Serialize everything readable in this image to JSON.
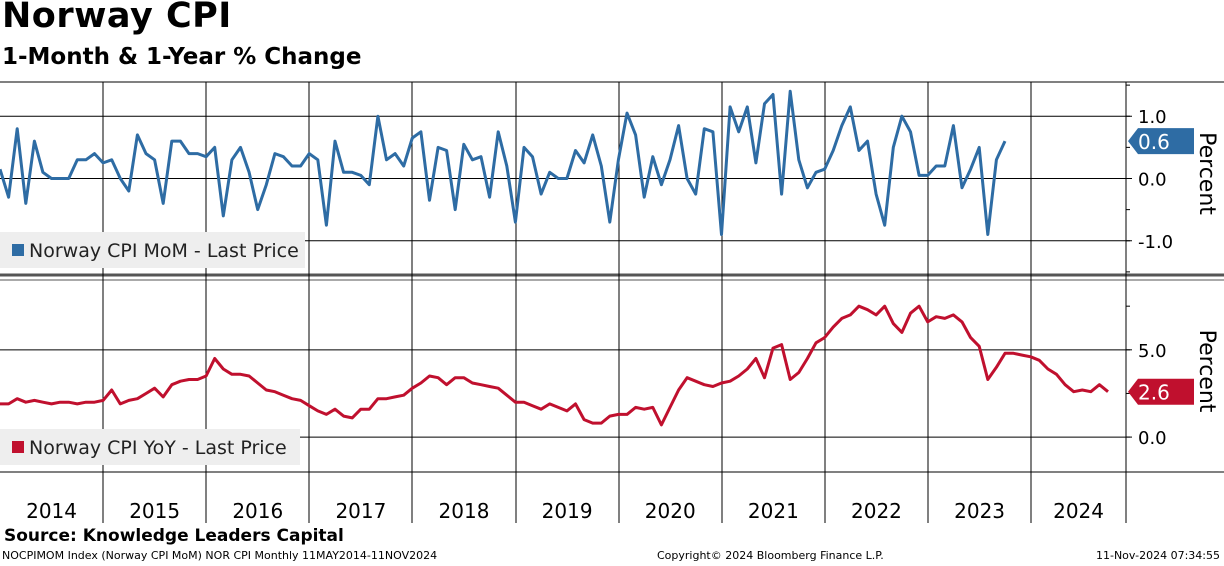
{
  "title": "Norway CPI",
  "subtitle": "1-Month & 1-Year % Change",
  "source": "Source: Knowledge Leaders Capital",
  "footer": {
    "left": "NOCPIMOM Index (Norway CPI MoM) NOR CPI  Monthly 11MAY2014-11NOV2024",
    "center": "Copyright© 2024 Bloomberg Finance L.P.",
    "right": "11-Nov-2024 07:34:55"
  },
  "colors": {
    "mom": "#2e6ca4",
    "yoy": "#c0102e"
  },
  "chart_data": [
    {
      "type": "line",
      "name": "mom",
      "x_range": [
        2014.0,
        2024.92
      ],
      "x_ticks": [
        "2014",
        "2015",
        "2016",
        "2017",
        "2018",
        "2019",
        "2020",
        "2021",
        "2022",
        "2023",
        "2024"
      ],
      "ylim": [
        -1.55,
        1.55
      ],
      "y_ticks": [
        -1.0,
        0.0,
        1.0
      ],
      "y_tick_labels": [
        "-1.0",
        "0.0",
        "1.0"
      ],
      "ylabel": "Percent",
      "legend": "Norway CPI MoM - Last Price",
      "last_value": "0.6",
      "grid": true,
      "series": [
        {
          "name": "Norway CPI MoM",
          "start": 2014.0,
          "step": 0.0833,
          "values": [
            0.15,
            -0.3,
            0.8,
            -0.4,
            0.6,
            0.1,
            0.0,
            0.0,
            0.0,
            0.3,
            0.3,
            0.4,
            0.25,
            0.3,
            0.0,
            -0.2,
            0.7,
            0.4,
            0.3,
            -0.4,
            0.6,
            0.6,
            0.4,
            0.4,
            0.35,
            0.5,
            -0.6,
            0.3,
            0.5,
            0.1,
            -0.5,
            -0.1,
            0.4,
            0.35,
            0.2,
            0.2,
            0.4,
            0.3,
            -0.75,
            0.6,
            0.1,
            0.1,
            0.05,
            -0.1,
            1.0,
            0.3,
            0.4,
            0.2,
            0.65,
            0.75,
            -0.35,
            0.5,
            0.45,
            -0.5,
            0.55,
            0.3,
            0.35,
            -0.3,
            0.75,
            0.2,
            -0.7,
            0.5,
            0.35,
            -0.25,
            0.1,
            0.0,
            0.0,
            0.45,
            0.25,
            0.7,
            0.2,
            -0.7,
            0.3,
            1.05,
            0.7,
            -0.3,
            0.35,
            -0.1,
            0.3,
            0.85,
            0.0,
            -0.25,
            0.8,
            0.75,
            -0.9,
            1.15,
            0.75,
            1.15,
            0.25,
            1.2,
            1.35,
            -0.25,
            1.4,
            0.3,
            -0.15,
            0.1,
            0.15,
            0.45,
            0.85,
            1.15,
            0.45,
            0.6,
            -0.25,
            -0.75,
            0.5,
            1.0,
            0.75,
            0.05,
            0.05,
            0.2,
            0.2,
            0.85,
            -0.15,
            0.15,
            0.5,
            -0.9,
            0.3,
            0.6
          ]
        }
      ]
    },
    {
      "type": "line",
      "name": "yoy",
      "x_range": [
        2014.0,
        2024.92
      ],
      "x_ticks": [
        "2014",
        "2015",
        "2016",
        "2017",
        "2018",
        "2019",
        "2020",
        "2021",
        "2022",
        "2023",
        "2024"
      ],
      "ylim": [
        -2.0,
        9.0
      ],
      "y_ticks": [
        0.0,
        5.0
      ],
      "y_tick_labels": [
        "0.0",
        "5.0"
      ],
      "ylabel": "Percent",
      "legend": "Norway CPI YoY - Last Price",
      "last_value": "2.6",
      "grid": true,
      "series": [
        {
          "name": "Norway CPI YoY",
          "start": 2014.0,
          "step": 0.0833,
          "values": [
            1.9,
            1.9,
            2.2,
            2.0,
            2.1,
            2.0,
            1.9,
            2.0,
            2.0,
            1.9,
            2.0,
            2.0,
            2.1,
            2.7,
            1.9,
            2.1,
            2.2,
            2.5,
            2.8,
            2.3,
            3.0,
            3.2,
            3.3,
            3.3,
            3.5,
            4.5,
            3.9,
            3.6,
            3.6,
            3.5,
            3.1,
            2.7,
            2.6,
            2.4,
            2.2,
            2.1,
            1.8,
            1.5,
            1.3,
            1.6,
            1.2,
            1.1,
            1.6,
            1.6,
            2.2,
            2.2,
            2.3,
            2.4,
            2.8,
            3.1,
            3.5,
            3.4,
            3.0,
            3.4,
            3.4,
            3.1,
            3.0,
            2.9,
            2.8,
            2.4,
            2.0,
            2.0,
            1.8,
            1.6,
            1.9,
            1.7,
            1.5,
            1.9,
            1.0,
            0.8,
            0.8,
            1.2,
            1.3,
            1.3,
            1.7,
            1.6,
            1.7,
            0.7,
            1.7,
            2.7,
            3.4,
            3.2,
            3.0,
            2.9,
            3.1,
            3.2,
            3.5,
            3.9,
            4.5,
            3.4,
            5.1,
            5.3,
            3.3,
            3.7,
            4.5,
            5.4,
            5.7,
            6.3,
            6.8,
            7.0,
            7.5,
            7.3,
            7.0,
            7.5,
            6.5,
            6.0,
            7.1,
            7.5,
            6.6,
            6.9,
            6.8,
            7.0,
            6.6,
            5.7,
            5.2,
            3.3,
            4.0,
            4.8,
            4.8,
            4.7,
            4.6,
            4.4,
            3.9,
            3.6,
            3.0,
            2.6,
            2.7,
            2.6,
            3.0,
            2.6
          ]
        }
      ]
    }
  ]
}
